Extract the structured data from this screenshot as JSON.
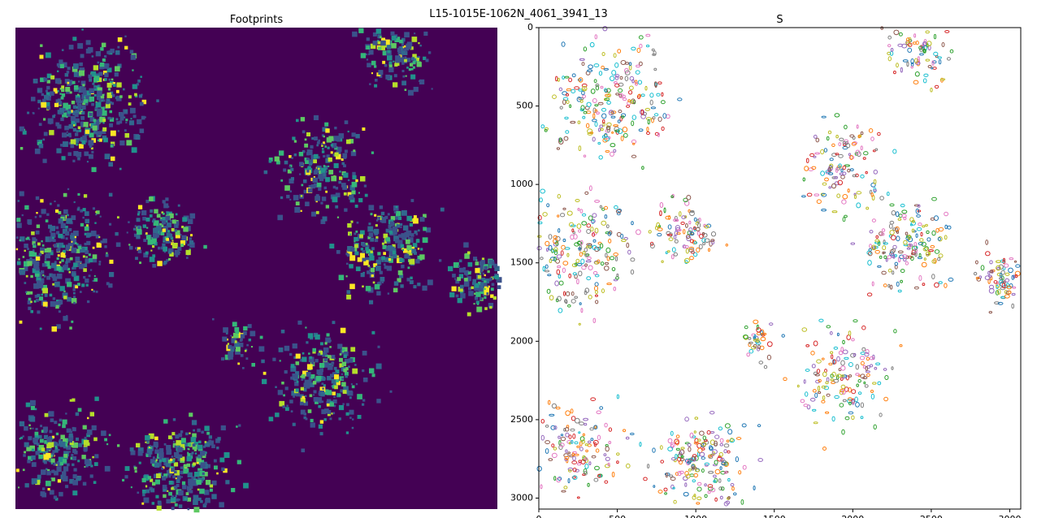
{
  "figure": {
    "suptitle": "L15-1015E-1062N_4061_3941_13"
  },
  "colors": {
    "left_background": "#440154",
    "left_palette": [
      "#3b528b",
      "#31688e",
      "#21918c",
      "#35b779",
      "#5ec962",
      "#b5de2b",
      "#fde725"
    ],
    "right_palette": [
      "#1f77b4",
      "#ff7f0e",
      "#2ca02c",
      "#d62728",
      "#9467bd",
      "#8c564b",
      "#e377c2",
      "#7f7f7f",
      "#bcbd22",
      "#17becf"
    ]
  },
  "chart_data": [
    {
      "type": "heatmap",
      "title": "Footprints",
      "axes": "off",
      "colormap": "viridis",
      "xlim": [
        0,
        3070
      ],
      "ylim": [
        3070,
        0
      ],
      "description_clusters": [
        {
          "x": 450,
          "y": 480,
          "r": 500,
          "n": 420
        },
        {
          "x": 250,
          "y": 1450,
          "r": 550,
          "n": 380
        },
        {
          "x": 950,
          "y": 1300,
          "r": 300,
          "n": 160
        },
        {
          "x": 2350,
          "y": 1400,
          "r": 400,
          "n": 260
        },
        {
          "x": 2950,
          "y": 1600,
          "r": 250,
          "n": 140
        },
        {
          "x": 1950,
          "y": 2250,
          "r": 450,
          "n": 260
        },
        {
          "x": 1050,
          "y": 2800,
          "r": 450,
          "n": 320
        },
        {
          "x": 250,
          "y": 2700,
          "r": 400,
          "n": 240
        },
        {
          "x": 2400,
          "y": 150,
          "r": 300,
          "n": 150
        },
        {
          "x": 1950,
          "y": 900,
          "r": 450,
          "n": 210
        },
        {
          "x": 1400,
          "y": 2000,
          "r": 200,
          "n": 60
        }
      ]
    },
    {
      "type": "scatter",
      "title": "S",
      "xlim": [
        0,
        3070
      ],
      "ylim": [
        3070,
        0
      ],
      "xticks": [
        0,
        500,
        1000,
        1500,
        2000,
        2500,
        3000
      ],
      "yticks": [
        0,
        500,
        1000,
        1500,
        2000,
        2500,
        3000
      ],
      "grid": false,
      "note": "building footprint outlines, random tab10 colors"
    }
  ]
}
